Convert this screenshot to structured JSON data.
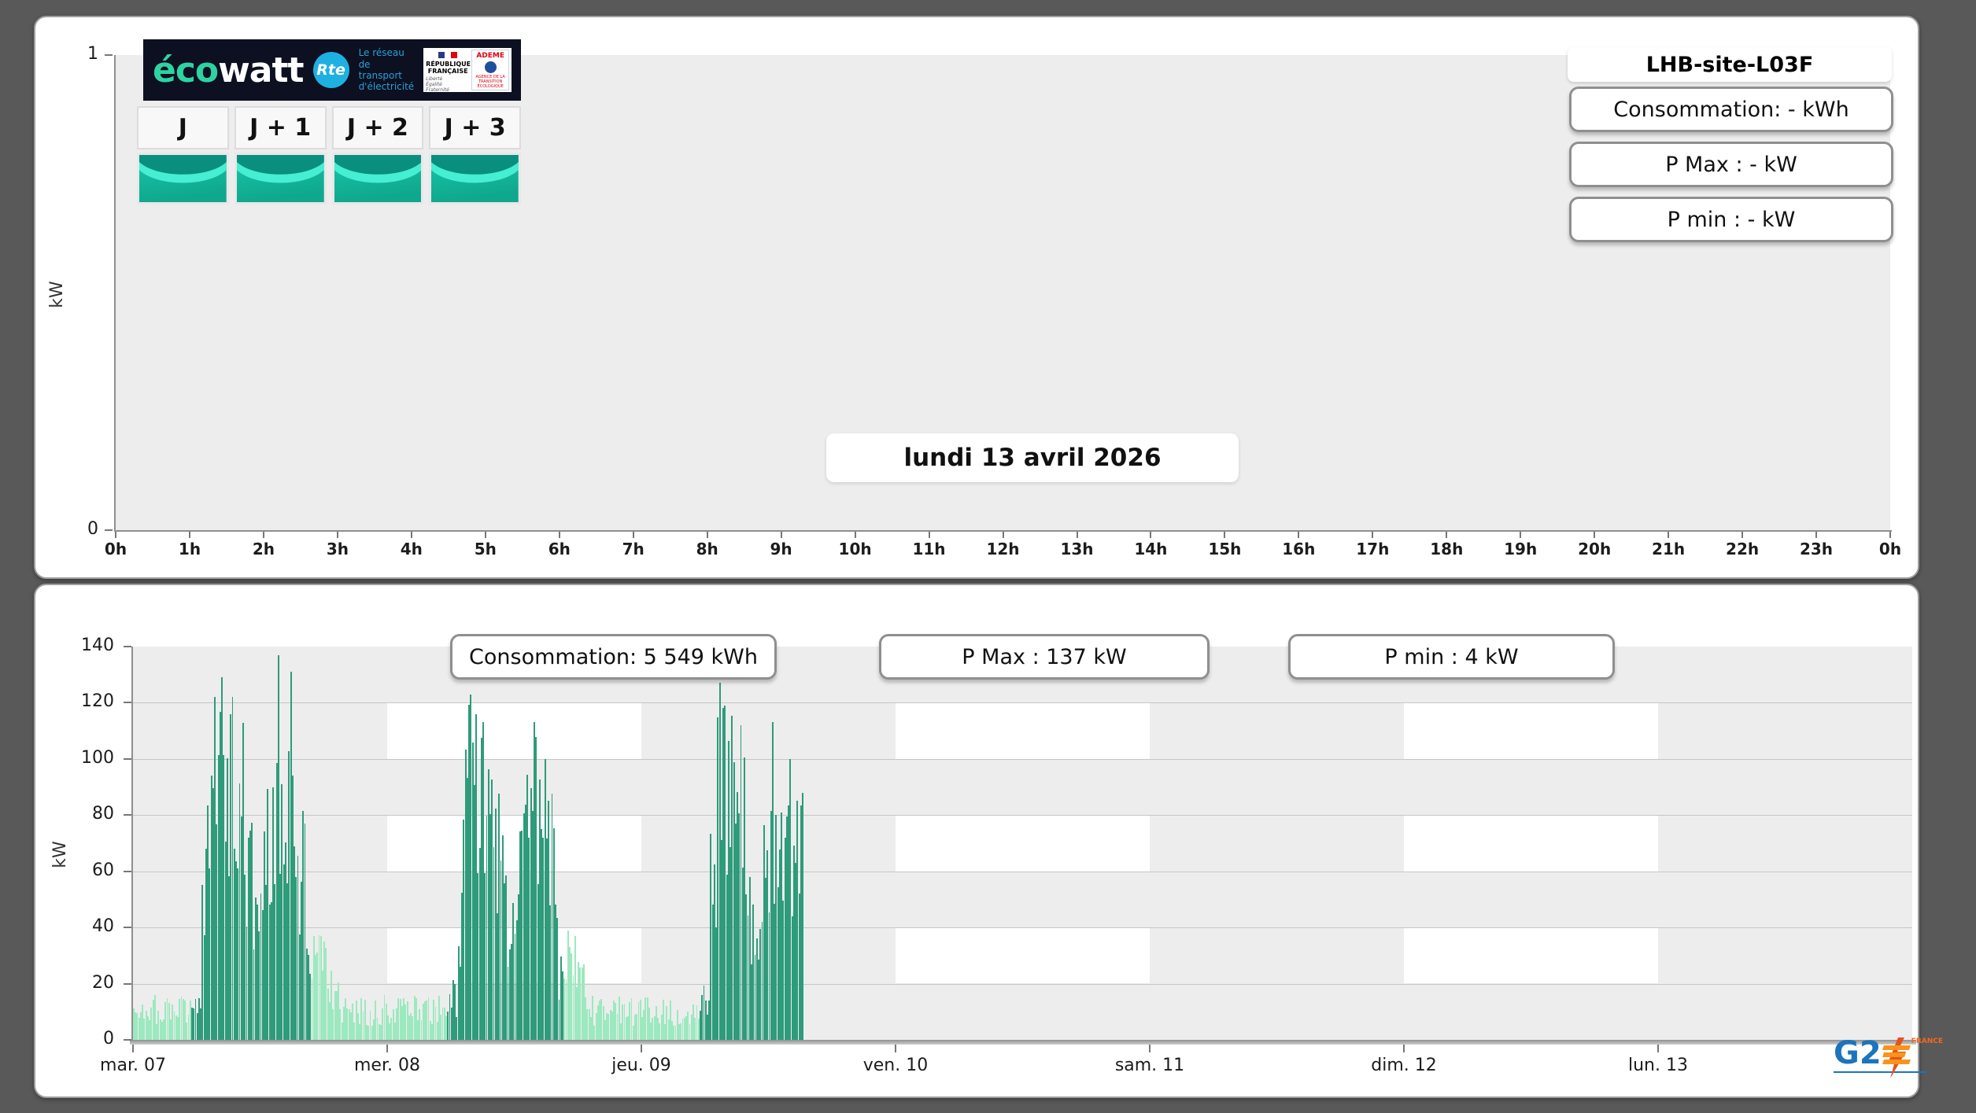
{
  "top_panel": {
    "logo": {
      "brand_eco": "éco",
      "brand_watt": "watt",
      "rte": "Rte",
      "rte_tagline_lines": [
        "Le réseau",
        "de transport",
        "d'électricité"
      ],
      "gov": {
        "republique_line1": "RÉPUBLIQUE",
        "republique_line2": "FRANÇAISE",
        "motto_lines": [
          "Liberté",
          "Égalité",
          "Fraternité"
        ],
        "ademe": "ADEME",
        "ademe_sub_lines": [
          "AGENCE DE LA",
          "TRANSITION",
          "ÉCOLOGIQUE"
        ]
      }
    },
    "day_buttons": [
      {
        "label": "J"
      },
      {
        "label": "J + 1"
      },
      {
        "label": "J + 2"
      },
      {
        "label": "J + 3"
      }
    ],
    "site_title": "LHB-site-L03F",
    "stats": [
      {
        "label": "Consommation: - kWh"
      },
      {
        "label": "P Max :  - kW"
      },
      {
        "label": "P min : - kW"
      }
    ],
    "date_label": "lundi 13 avril 2026",
    "y_axis_label": "kW"
  },
  "bottom_panel": {
    "stats": [
      {
        "label": "Consommation: 5 549 kWh"
      },
      {
        "label": "P Max :  137 kW"
      },
      {
        "label": "P min : 4 kW"
      }
    ],
    "y_axis_label": "kW",
    "watermark": {
      "g2": "G2",
      "france": "FRANCE"
    }
  },
  "chart_data": [
    {
      "type": "bar",
      "title": "LHB-site-L03F",
      "ylabel": "kW",
      "ylim": [
        0,
        1
      ],
      "y_ticks": [
        "1",
        "0"
      ],
      "x_ticks": [
        "0h",
        "1h",
        "2h",
        "3h",
        "4h",
        "5h",
        "6h",
        "7h",
        "8h",
        "9h",
        "10h",
        "11h",
        "12h",
        "13h",
        "14h",
        "15h",
        "16h",
        "17h",
        "18h",
        "19h",
        "20h",
        "21h",
        "22h",
        "23h",
        "0h"
      ],
      "series": [],
      "annotation": "lundi 13 avril 2026",
      "summary": {
        "consommation": "- kWh",
        "p_max": "- kW",
        "p_min": "- kW"
      },
      "grid": false,
      "background": "#ededed"
    },
    {
      "type": "bar",
      "ylabel": "kW",
      "ylim": [
        0,
        140
      ],
      "y_ticks": [
        0,
        20,
        40,
        60,
        80,
        100,
        120,
        140
      ],
      "x_ticks": [
        "mar. 07",
        "mer. 08",
        "jeu. 09",
        "ven. 10",
        "sam. 11",
        "dim. 12",
        "lun. 13"
      ],
      "span_days": 7,
      "bar_minutes": 10,
      "summary": {
        "consommation_kwh": "5 549",
        "p_max_kw": 137,
        "p_min_kw": 4
      },
      "colors": {
        "dark_green": "#2e9b7a",
        "light_green": "#9ce9bf"
      },
      "background": "#ededed",
      "background_checker": {
        "white_rows_kw": [
          [
            20,
            40
          ],
          [
            60,
            80
          ],
          [
            100,
            120
          ]
        ],
        "white_day_columns": [
          1,
          3,
          5
        ],
        "white_color": "#ffffff"
      },
      "profile_hours_color_min_max": [
        [
          0,
          5.5,
          "L",
          5,
          16
        ],
        [
          5.5,
          6.5,
          "D",
          8,
          20
        ],
        [
          6.5,
          7,
          "D",
          25,
          70
        ],
        [
          7,
          9,
          "D",
          55,
          125
        ],
        [
          9,
          10.5,
          "D",
          55,
          118
        ],
        [
          10.5,
          11.3,
          "D",
          38,
          85
        ],
        [
          11.3,
          12.3,
          "D",
          24,
          55
        ],
        [
          12.3,
          13.2,
          "D",
          45,
          100
        ],
        [
          13.2,
          15.2,
          "D",
          55,
          118
        ],
        [
          15.2,
          16.3,
          "D",
          35,
          88
        ],
        [
          16.3,
          16.9,
          "D",
          14,
          45
        ],
        [
          16.9,
          18.3,
          "L",
          20,
          40
        ],
        [
          18.3,
          19.5,
          "L",
          10,
          26
        ],
        [
          19.5,
          29.6,
          "L",
          5,
          16
        ],
        [
          29.6,
          30.6,
          "D",
          8,
          22
        ],
        [
          30.6,
          31.2,
          "D",
          25,
          70
        ],
        [
          31.2,
          33.5,
          "D",
          55,
          120
        ],
        [
          33.5,
          35,
          "D",
          45,
          105
        ],
        [
          35,
          36.3,
          "D",
          26,
          60
        ],
        [
          36.3,
          38.5,
          "D",
          45,
          108
        ],
        [
          38.5,
          40,
          "D",
          35,
          95
        ],
        [
          40,
          40.6,
          "D",
          14,
          48
        ],
        [
          40.6,
          42.6,
          "L",
          18,
          40
        ],
        [
          42.6,
          53.5,
          "L",
          5,
          16
        ],
        [
          53.5,
          54.5,
          "D",
          8,
          22
        ],
        [
          54.5,
          55.1,
          "D",
          28,
          75
        ],
        [
          55.1,
          57,
          "D",
          55,
          122
        ],
        [
          57,
          58,
          "D",
          48,
          108
        ],
        [
          58,
          59.5,
          "D",
          26,
          58
        ],
        [
          59.5,
          61.5,
          "D",
          45,
          105
        ],
        [
          61.5,
          62.7,
          "D",
          40,
          92
        ],
        [
          62.7,
          63.3,
          "D",
          50,
          88
        ]
      ],
      "peaks_hour_kw": [
        [
          7.6,
          122
        ],
        [
          8.4,
          129
        ],
        [
          9.4,
          122
        ],
        [
          13.6,
          137
        ],
        [
          14.8,
          131
        ],
        [
          31.8,
          123
        ],
        [
          32.4,
          116
        ],
        [
          33,
          113
        ],
        [
          37.9,
          113
        ],
        [
          38.8,
          100
        ],
        [
          55.3,
          127
        ],
        [
          55.9,
          119
        ],
        [
          57.4,
          112
        ],
        [
          60.4,
          113
        ],
        [
          62,
          100
        ],
        [
          63.2,
          88
        ]
      ]
    }
  ]
}
